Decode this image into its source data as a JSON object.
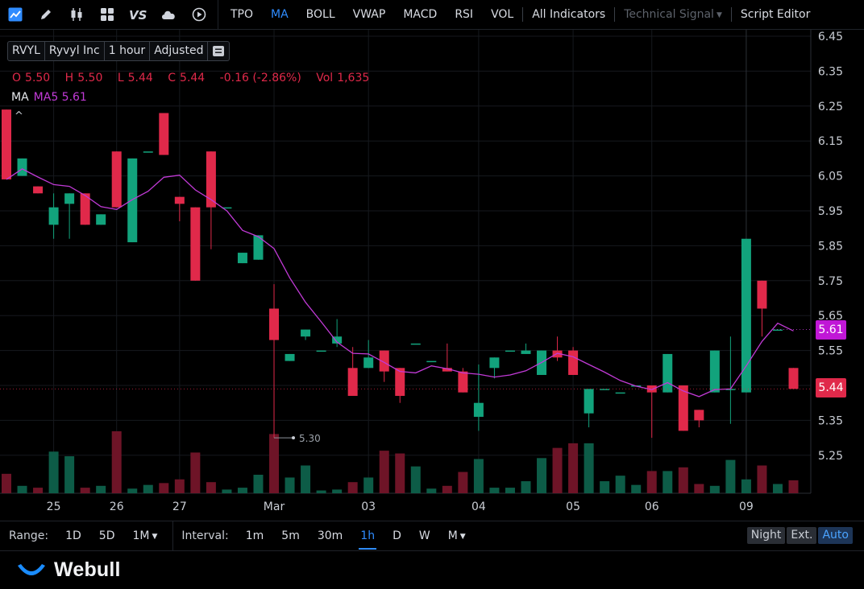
{
  "toolbar": {
    "tools": [
      "chart-type-icon",
      "draw-pencil-icon",
      "candlestick-icon",
      "layout-grid-icon",
      "compare-vs-icon",
      "cloud-icon",
      "replay-icon"
    ],
    "indicators": [
      "TPO",
      "MA",
      "BOLL",
      "VWAP",
      "MACD",
      "RSI",
      "VOL"
    ],
    "active_indicator": "MA",
    "all_indicators": "All Indicators",
    "technical_signal": "Technical Signal",
    "script_editor": "Script Editor"
  },
  "symbol": {
    "ticker": "RVYL",
    "name": "Ryvyl Inc",
    "interval": "1 hour",
    "adjust": "Adjusted"
  },
  "ohlc": {
    "o_label": "O",
    "o": "5.50",
    "h_label": "H",
    "h": "5.50",
    "l_label": "L",
    "l": "5.44",
    "c_label": "C",
    "c": "5.44",
    "change": "-0.16 (-2.86%)",
    "vol_label": "Vol",
    "vol": "1,635"
  },
  "ma_legend": {
    "name": "MA",
    "value": "MA5 5.61",
    "collapse": "^"
  },
  "price_tags": {
    "ma": "5.61",
    "last": "5.44"
  },
  "colors": {
    "up": "#12a37c",
    "down": "#e0294a",
    "ma": "#c13ad6",
    "up_vol": "#0d5c47",
    "down_vol": "#6e1427",
    "accent": "#2f8cff"
  },
  "chart_data": {
    "type": "candlestick",
    "symbol": "RVYL",
    "interval": "1h",
    "y_ticks": [
      6.45,
      6.35,
      6.25,
      6.15,
      6.05,
      5.95,
      5.85,
      5.75,
      5.65,
      5.55,
      5.45,
      5.35,
      5.25
    ],
    "ylim": [
      5.25,
      6.45
    ],
    "x_labels": [
      {
        "label": "25",
        "index": 3
      },
      {
        "label": "26",
        "index": 7
      },
      {
        "label": "27",
        "index": 11
      },
      {
        "label": "Mar",
        "index": 17
      },
      {
        "label": "03",
        "index": 23
      },
      {
        "label": "04",
        "index": 30
      },
      {
        "label": "05",
        "index": 36
      },
      {
        "label": "06",
        "index": 41
      },
      {
        "label": "09",
        "index": 47
      }
    ],
    "min_annotation": {
      "label": "5.30",
      "index": 17
    },
    "ma": {
      "name": "MA5",
      "period": 5,
      "last": 5.61
    },
    "candles": [
      {
        "o": 6.24,
        "h": 6.24,
        "l": 6.04,
        "c": 6.04,
        "v": 21
      },
      {
        "o": 6.05,
        "h": 6.1,
        "l": 6.05,
        "c": 6.1,
        "v": 8
      },
      {
        "o": 6.02,
        "h": 6.02,
        "l": 6.0,
        "c": 6.0,
        "v": 6
      },
      {
        "o": 5.91,
        "h": 6.0,
        "l": 5.87,
        "c": 5.96,
        "v": 45
      },
      {
        "o": 5.97,
        "h": 6.0,
        "l": 5.87,
        "c": 6.0,
        "v": 40
      },
      {
        "o": 6.0,
        "h": 6.0,
        "l": 5.91,
        "c": 5.91,
        "v": 6
      },
      {
        "o": 5.91,
        "h": 5.94,
        "l": 5.91,
        "c": 5.94,
        "v": 8
      },
      {
        "o": 6.12,
        "h": 6.12,
        "l": 5.96,
        "c": 5.96,
        "v": 67
      },
      {
        "o": 5.86,
        "h": 6.1,
        "l": 5.86,
        "c": 6.1,
        "v": 5
      },
      {
        "o": 6.12,
        "h": 6.12,
        "l": 6.12,
        "c": 6.12,
        "v": 9
      },
      {
        "o": 6.23,
        "h": 6.23,
        "l": 6.11,
        "c": 6.11,
        "v": 11
      },
      {
        "o": 5.99,
        "h": 5.99,
        "l": 5.92,
        "c": 5.97,
        "v": 15
      },
      {
        "o": 5.96,
        "h": 5.96,
        "l": 5.75,
        "c": 5.75,
        "v": 44
      },
      {
        "o": 6.12,
        "h": 6.12,
        "l": 5.84,
        "c": 5.96,
        "v": 12
      },
      {
        "o": 5.96,
        "h": 5.96,
        "l": 5.96,
        "c": 5.96,
        "v": 4
      },
      {
        "o": 5.8,
        "h": 5.83,
        "l": 5.8,
        "c": 5.83,
        "v": 6
      },
      {
        "o": 5.81,
        "h": 5.88,
        "l": 5.81,
        "c": 5.88,
        "v": 20
      },
      {
        "o": 5.67,
        "h": 5.74,
        "l": 5.3,
        "c": 5.58,
        "v": 64
      },
      {
        "o": 5.52,
        "h": 5.54,
        "l": 5.52,
        "c": 5.54,
        "v": 17
      },
      {
        "o": 5.59,
        "h": 5.61,
        "l": 5.58,
        "c": 5.61,
        "v": 30
      },
      {
        "o": 5.55,
        "h": 5.55,
        "l": 5.55,
        "c": 5.55,
        "v": 3
      },
      {
        "o": 5.57,
        "h": 5.64,
        "l": 5.56,
        "c": 5.59,
        "v": 4
      },
      {
        "o": 5.5,
        "h": 5.56,
        "l": 5.42,
        "c": 5.42,
        "v": 12
      },
      {
        "o": 5.5,
        "h": 5.58,
        "l": 5.5,
        "c": 5.53,
        "v": 17
      },
      {
        "o": 5.55,
        "h": 5.55,
        "l": 5.46,
        "c": 5.49,
        "v": 46
      },
      {
        "o": 5.5,
        "h": 5.5,
        "l": 5.4,
        "c": 5.42,
        "v": 43
      },
      {
        "o": 5.57,
        "h": 5.57,
        "l": 5.57,
        "c": 5.57,
        "v": 29
      },
      {
        "o": 5.52,
        "h": 5.52,
        "l": 5.52,
        "c": 5.52,
        "v": 5
      },
      {
        "o": 5.5,
        "h": 5.57,
        "l": 5.49,
        "c": 5.49,
        "v": 8
      },
      {
        "o": 5.49,
        "h": 5.5,
        "l": 5.43,
        "c": 5.43,
        "v": 23
      },
      {
        "o": 5.36,
        "h": 5.51,
        "l": 5.32,
        "c": 5.4,
        "v": 37
      },
      {
        "o": 5.5,
        "h": 5.53,
        "l": 5.47,
        "c": 5.53,
        "v": 6
      },
      {
        "o": 5.55,
        "h": 5.55,
        "l": 5.55,
        "c": 5.55,
        "v": 6
      },
      {
        "o": 5.54,
        "h": 5.57,
        "l": 5.54,
        "c": 5.55,
        "v": 13
      },
      {
        "o": 5.48,
        "h": 5.55,
        "l": 5.48,
        "c": 5.55,
        "v": 38
      },
      {
        "o": 5.55,
        "h": 5.59,
        "l": 5.52,
        "c": 5.53,
        "v": 49
      },
      {
        "o": 5.55,
        "h": 5.56,
        "l": 5.48,
        "c": 5.48,
        "v": 54
      },
      {
        "o": 5.37,
        "h": 5.44,
        "l": 5.33,
        "c": 5.44,
        "v": 54
      },
      {
        "o": 5.44,
        "h": 5.44,
        "l": 5.44,
        "c": 5.44,
        "v": 13
      },
      {
        "o": 5.43,
        "h": 5.43,
        "l": 5.43,
        "c": 5.43,
        "v": 19
      },
      {
        "o": 5.45,
        "h": 5.45,
        "l": 5.45,
        "c": 5.45,
        "v": 9
      },
      {
        "o": 5.45,
        "h": 5.45,
        "l": 5.3,
        "c": 5.43,
        "v": 24
      },
      {
        "o": 5.43,
        "h": 5.54,
        "l": 5.43,
        "c": 5.54,
        "v": 24
      },
      {
        "o": 5.45,
        "h": 5.45,
        "l": 5.32,
        "c": 5.32,
        "v": 28
      },
      {
        "o": 5.38,
        "h": 5.38,
        "l": 5.33,
        "c": 5.35,
        "v": 10
      },
      {
        "o": 5.43,
        "h": 5.55,
        "l": 5.43,
        "c": 5.55,
        "v": 8
      },
      {
        "o": 5.44,
        "h": 5.59,
        "l": 5.34,
        "c": 5.44,
        "v": 36
      },
      {
        "o": 5.43,
        "h": 5.87,
        "l": 5.43,
        "c": 5.87,
        "v": 15
      },
      {
        "o": 5.75,
        "h": 5.75,
        "l": 5.59,
        "c": 5.67,
        "v": 30
      },
      {
        "o": 5.61,
        "h": 5.61,
        "l": 5.61,
        "c": 5.61,
        "v": 10
      },
      {
        "o": 5.5,
        "h": 5.5,
        "l": 5.44,
        "c": 5.44,
        "v": 14
      }
    ]
  },
  "bottom_bar": {
    "range_label": "Range:",
    "ranges": [
      "1D",
      "5D",
      "1M"
    ],
    "range_dropdown": "1M",
    "interval_label": "Interval:",
    "intervals": [
      "1m",
      "5m",
      "30m",
      "1h",
      "D",
      "W",
      "M"
    ],
    "active_interval": "1h",
    "sessions": [
      "Night",
      "Ext.",
      "Auto"
    ],
    "active_session": "Auto"
  },
  "brand": {
    "name": "Webull"
  }
}
